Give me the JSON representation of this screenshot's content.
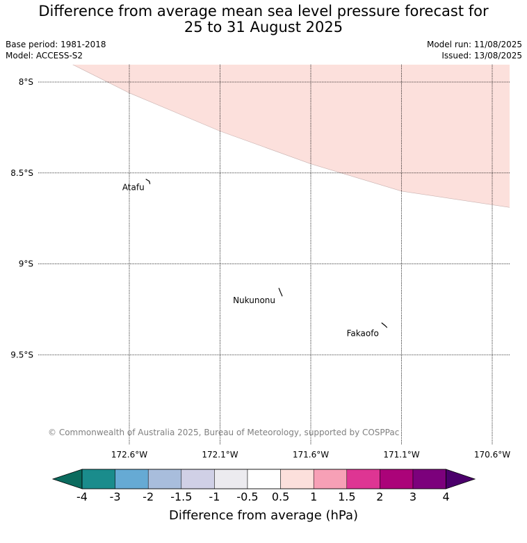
{
  "title_line1": "Difference from average mean sea level pressure forecast for",
  "title_line2": "25 to 31 August 2025",
  "base_period": "Base period: 1981-2018",
  "model": "Model: ACCESS-S2",
  "model_run": "Model run: 11/08/2025",
  "issued": "Issued: 13/08/2025",
  "copyright": "© Commonwealth of Australia 2025, Bureau of Meteorology, supported by COSPPac",
  "lat_labels": [
    "8°S",
    "8.5°S",
    "9°S",
    "9.5°S"
  ],
  "lon_labels": [
    "172.6°W",
    "172.1°W",
    "171.6°W",
    "171.1°W",
    "170.6°W"
  ],
  "places": [
    {
      "name": "Atafu",
      "lat": -8.58,
      "lon": -172.49
    },
    {
      "name": "Nukunonu",
      "lat": -9.19,
      "lon": -171.78
    },
    {
      "name": "Fakaofo",
      "lat": -9.37,
      "lon": -171.21
    }
  ],
  "shading": {
    "label": "0.5 to 1 hPa",
    "color": "#fce0dc",
    "boundary": [
      [
        -172.92,
        -7.9
      ],
      [
        -172.6,
        -8.06
      ],
      [
        -172.1,
        -8.27
      ],
      [
        -171.6,
        -8.45
      ],
      [
        -171.2,
        -8.57
      ],
      [
        -171.1,
        -8.6
      ],
      [
        -170.5,
        -8.69
      ]
    ]
  },
  "colorbar": {
    "title": "Difference from average (hPa)",
    "ticks": [
      "-4",
      "-3",
      "-2",
      "-1.5",
      "-1",
      "-0.5",
      "0.5",
      "1",
      "1.5",
      "2",
      "3",
      "4"
    ],
    "colors": [
      "#1a8c8c",
      "#66aad4",
      "#a8bddc",
      "#d0d0e6",
      "#ecebef",
      "#ffffff",
      "#fce0dc",
      "#f7a0b6",
      "#de3593",
      "#ab0379",
      "#7c017c"
    ],
    "under_color": "#0b6b5e",
    "over_color": "#4b006b"
  }
}
